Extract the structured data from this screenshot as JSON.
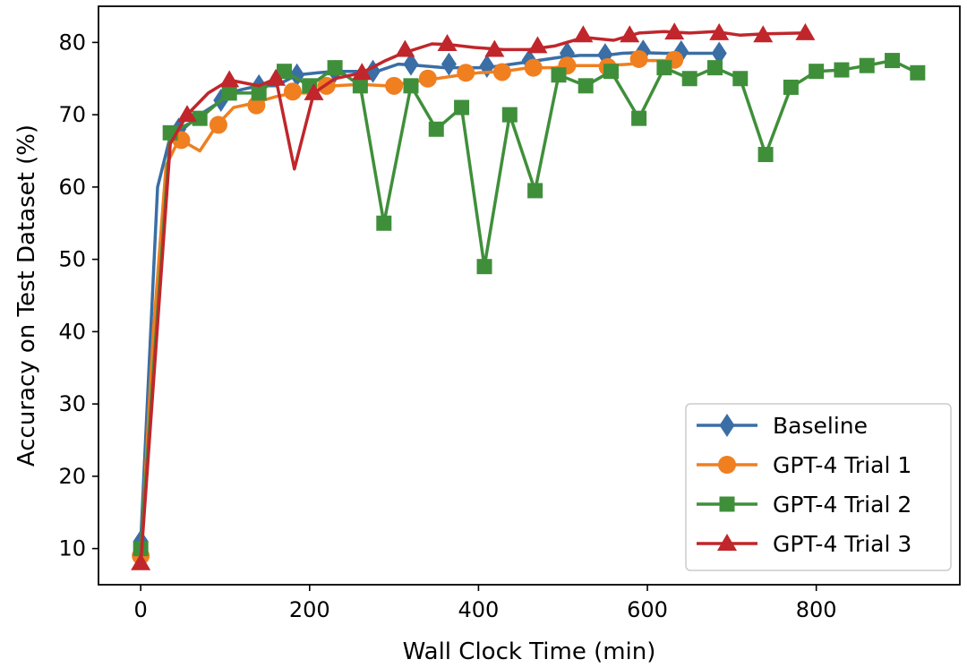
{
  "chart_data": {
    "type": "line",
    "title": "",
    "xlabel": "Wall Clock Time (min)",
    "ylabel": "Accuracy on Test Dataset (%)",
    "xlim": [
      -50,
      970
    ],
    "ylim": [
      5,
      85
    ],
    "xticks": [
      0,
      200,
      400,
      600,
      800
    ],
    "yticks": [
      10,
      20,
      30,
      40,
      50,
      60,
      70,
      80
    ],
    "legend_position": "lower right",
    "grid": false,
    "series": [
      {
        "name": "Baseline",
        "color": "#3a6ea5",
        "marker": "diamond",
        "line": [
          [
            0,
            11
          ],
          [
            20,
            60
          ],
          [
            35,
            67
          ],
          [
            50,
            68
          ],
          [
            70,
            70
          ],
          [
            90,
            71.5
          ],
          [
            105,
            73
          ],
          [
            120,
            73.5
          ],
          [
            140,
            74
          ],
          [
            160,
            74
          ],
          [
            185,
            75.5
          ],
          [
            210,
            75.8
          ],
          [
            230,
            76
          ],
          [
            255,
            76
          ],
          [
            280,
            76
          ],
          [
            305,
            77
          ],
          [
            330,
            76.8
          ],
          [
            360,
            76.5
          ],
          [
            380,
            76.5
          ],
          [
            410,
            76.5
          ],
          [
            440,
            77
          ],
          [
            470,
            77.5
          ],
          [
            500,
            78
          ],
          [
            520,
            78.2
          ],
          [
            550,
            78.2
          ],
          [
            570,
            78.5
          ],
          [
            590,
            78.6
          ],
          [
            620,
            78.5
          ],
          [
            640,
            78.5
          ],
          [
            660,
            78.5
          ],
          [
            685,
            78.5
          ]
        ],
        "points": [
          [
            0,
            11
          ],
          [
            45,
            68
          ],
          [
            95,
            72
          ],
          [
            140,
            74
          ],
          [
            185,
            75.5
          ],
          [
            230,
            76
          ],
          [
            275,
            76
          ],
          [
            320,
            77
          ],
          [
            365,
            77
          ],
          [
            410,
            76.7
          ],
          [
            460,
            77.5
          ],
          [
            505,
            78.5
          ],
          [
            550,
            78.3
          ],
          [
            595,
            78.8
          ],
          [
            640,
            78.7
          ],
          [
            685,
            78.5
          ]
        ]
      },
      {
        "name": "GPT-4 Trial 1",
        "color": "#f07f20",
        "marker": "circle",
        "line": [
          [
            0,
            9
          ],
          [
            15,
            40
          ],
          [
            30,
            63
          ],
          [
            45,
            66.5
          ],
          [
            55,
            66
          ],
          [
            70,
            65
          ],
          [
            90,
            68.5
          ],
          [
            110,
            71
          ],
          [
            130,
            71.5
          ],
          [
            160,
            72.5
          ],
          [
            180,
            73
          ],
          [
            200,
            73
          ],
          [
            230,
            74
          ],
          [
            260,
            74.2
          ],
          [
            290,
            74
          ],
          [
            320,
            74.5
          ],
          [
            350,
            75
          ],
          [
            380,
            75.5
          ],
          [
            400,
            75.8
          ],
          [
            430,
            76
          ],
          [
            460,
            76.5
          ],
          [
            490,
            76.5
          ],
          [
            510,
            76.8
          ],
          [
            550,
            76.8
          ],
          [
            580,
            77
          ],
          [
            600,
            77.5
          ],
          [
            620,
            77.5
          ],
          [
            630,
            77.5
          ]
        ],
        "points": [
          [
            0,
            9
          ],
          [
            48,
            66.5
          ],
          [
            92,
            68.6
          ],
          [
            137,
            71.3
          ],
          [
            180,
            73.2
          ],
          [
            220,
            74
          ],
          [
            300,
            74
          ],
          [
            340,
            75
          ],
          [
            385,
            75.8
          ],
          [
            428,
            75.9
          ],
          [
            465,
            76.5
          ],
          [
            505,
            76.8
          ],
          [
            553,
            76.6
          ],
          [
            590,
            77.7
          ],
          [
            632,
            77.6
          ]
        ]
      },
      {
        "name": "GPT-4 Trial 2",
        "color": "#3f8f3a",
        "marker": "square",
        "line": [
          [
            0,
            10
          ],
          [
            35,
            67.5
          ],
          [
            70,
            69.5
          ],
          [
            105,
            73
          ],
          [
            140,
            73
          ],
          [
            170,
            76
          ],
          [
            200,
            74
          ],
          [
            230,
            76.5
          ],
          [
            260,
            74
          ],
          [
            288,
            55
          ],
          [
            320,
            74
          ],
          [
            350,
            68
          ],
          [
            380,
            71
          ],
          [
            407,
            49
          ],
          [
            437,
            70
          ],
          [
            467,
            59.5
          ],
          [
            495,
            75.5
          ],
          [
            527,
            74
          ],
          [
            557,
            76
          ],
          [
            590,
            69.5
          ],
          [
            620,
            76.5
          ],
          [
            650,
            75
          ],
          [
            680,
            76.5
          ],
          [
            710,
            75
          ],
          [
            740,
            64.5
          ],
          [
            770,
            73.8
          ],
          [
            800,
            76
          ],
          [
            830,
            76.2
          ],
          [
            860,
            76.8
          ],
          [
            890,
            77.5
          ],
          [
            920,
            75.8
          ]
        ],
        "points": [
          [
            0,
            10
          ],
          [
            35,
            67.5
          ],
          [
            70,
            69.5
          ],
          [
            105,
            73
          ],
          [
            140,
            73
          ],
          [
            170,
            76
          ],
          [
            200,
            74
          ],
          [
            230,
            76.5
          ],
          [
            260,
            74
          ],
          [
            288,
            55
          ],
          [
            320,
            74
          ],
          [
            350,
            68
          ],
          [
            380,
            71
          ],
          [
            407,
            49
          ],
          [
            437,
            70
          ],
          [
            467,
            59.5
          ],
          [
            495,
            75.5
          ],
          [
            527,
            74
          ],
          [
            557,
            76
          ],
          [
            590,
            69.5
          ],
          [
            620,
            76.5
          ],
          [
            650,
            75
          ],
          [
            680,
            76.5
          ],
          [
            710,
            75
          ],
          [
            740,
            64.5
          ],
          [
            770,
            73.8
          ],
          [
            800,
            76
          ],
          [
            830,
            76.2
          ],
          [
            860,
            76.8
          ],
          [
            890,
            77.5
          ],
          [
            920,
            75.8
          ]
        ]
      },
      {
        "name": "GPT-4 Trial 3",
        "color": "#c0262b",
        "marker": "triangle",
        "line": [
          [
            0,
            8
          ],
          [
            35,
            66
          ],
          [
            55,
            70
          ],
          [
            80,
            73
          ],
          [
            105,
            74.8
          ],
          [
            140,
            74
          ],
          [
            160,
            75
          ],
          [
            182,
            62.5
          ],
          [
            205,
            73
          ],
          [
            230,
            75
          ],
          [
            262,
            75.8
          ],
          [
            290,
            77.5
          ],
          [
            310,
            78.5
          ],
          [
            345,
            79.8
          ],
          [
            365,
            79.7
          ],
          [
            395,
            79.3
          ],
          [
            430,
            79
          ],
          [
            460,
            79
          ],
          [
            490,
            79.5
          ],
          [
            525,
            80.7
          ],
          [
            560,
            80.3
          ],
          [
            590,
            81.3
          ],
          [
            620,
            81.5
          ],
          [
            650,
            81.3
          ],
          [
            680,
            81.5
          ],
          [
            710,
            81
          ],
          [
            740,
            81.2
          ],
          [
            785,
            81.3
          ]
        ],
        "points": [
          [
            0,
            8
          ],
          [
            55,
            70
          ],
          [
            105,
            74.8
          ],
          [
            160,
            75
          ],
          [
            205,
            73
          ],
          [
            262,
            75.8
          ],
          [
            313,
            79
          ],
          [
            363,
            79.8
          ],
          [
            419,
            79
          ],
          [
            470,
            79.5
          ],
          [
            524,
            81
          ],
          [
            579,
            81
          ],
          [
            632,
            81.4
          ],
          [
            685,
            81.3
          ],
          [
            737,
            81
          ],
          [
            787,
            81.3
          ]
        ]
      }
    ]
  }
}
